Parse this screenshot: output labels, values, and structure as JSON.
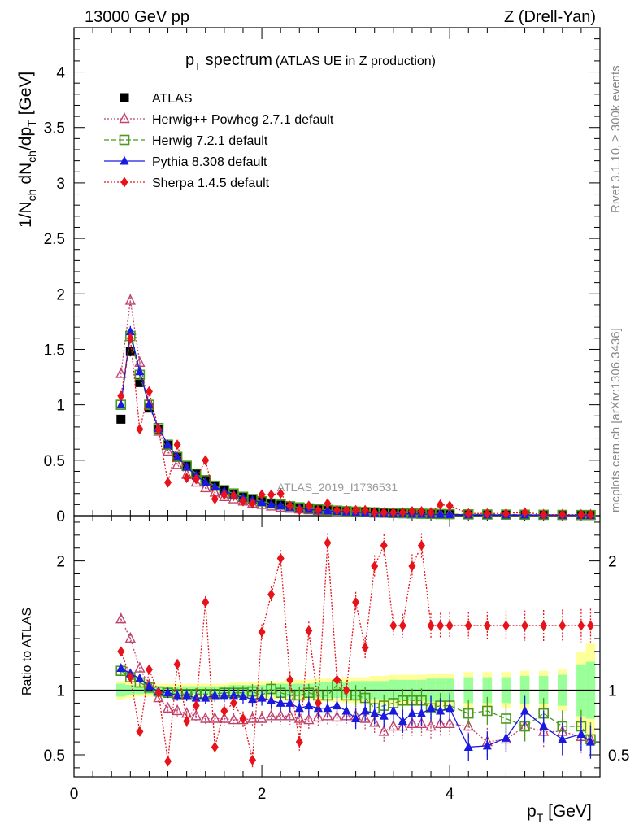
{
  "header": {
    "left": "13000 GeV pp",
    "right": "Z (Drell-Yan)"
  },
  "side_labels": {
    "top": "Rivet 3.1.10, ≥ 300k events",
    "bottom": "mcplots.cern.ch [arXiv:1306.3436]"
  },
  "title": {
    "main": "p",
    "main_sub": "T",
    "main_rest": " spectrum",
    "detail": "(ATLAS UE in Z production)"
  },
  "watermark": "ATLAS_2019_I1736531",
  "axes": {
    "ylabel_top": "1/N",
    "ylabel_ch1": "ch",
    "ylabel_mid": " dN",
    "ylabel_ch2": "ch",
    "ylabel_rest": "/dp",
    "ylabel_T": "T",
    "ylabel_unit": " [GeV]",
    "ylabel_ratio": "Ratio to ATLAS",
    "xlabel_p": "p",
    "xlabel_T": "T",
    "xlabel_unit": " [GeV]"
  },
  "chart_data": [
    {
      "type": "line",
      "panel": "main",
      "title": "pT spectrum (ATLAS UE in Z production)",
      "xlabel": "pT [GeV]",
      "ylabel": "1/Nch dNch/dpT [GeV]",
      "xlim": [
        0,
        5.6
      ],
      "ylim": [
        0,
        4.4
      ],
      "xticks": [
        "0",
        "2",
        "4"
      ],
      "yticks": [
        "0",
        "0.5",
        "1",
        "1.5",
        "2",
        "2.5",
        "3",
        "3.5",
        "4"
      ],
      "legend_position": "top-left",
      "x": [
        0.5,
        0.6,
        0.7,
        0.8,
        0.9,
        1.0,
        1.1,
        1.2,
        1.3,
        1.4,
        1.5,
        1.6,
        1.7,
        1.8,
        1.9,
        2.0,
        2.1,
        2.2,
        2.3,
        2.4,
        2.5,
        2.6,
        2.7,
        2.8,
        2.9,
        3.0,
        3.1,
        3.2,
        3.3,
        3.4,
        3.5,
        3.6,
        3.7,
        3.8,
        3.9,
        4.0,
        4.2,
        4.4,
        4.6,
        4.8,
        5.0,
        5.2,
        5.4,
        5.5
      ],
      "series": [
        {
          "name": "ATLAS",
          "color": "#000000",
          "marker": "square",
          "values": [
            0.87,
            1.48,
            1.2,
            0.97,
            0.78,
            0.64,
            0.53,
            0.45,
            0.38,
            0.32,
            0.27,
            0.23,
            0.2,
            0.17,
            0.15,
            0.13,
            0.11,
            0.1,
            0.085,
            0.075,
            0.066,
            0.058,
            0.052,
            0.046,
            0.041,
            0.037,
            0.033,
            0.03,
            0.027,
            0.024,
            0.022,
            0.02,
            0.018,
            0.017,
            0.015,
            0.014,
            0.012,
            0.011,
            0.01,
            0.009,
            0.008,
            0.007,
            0.006,
            0.006
          ]
        },
        {
          "name": "Herwig++ Powheg 2.7.1 default",
          "color": "#c0426f",
          "marker": "open-triangle",
          "line": "dotted",
          "values": [
            1.28,
            1.94,
            1.38,
            1.0,
            0.76,
            0.58,
            0.46,
            0.37,
            0.3,
            0.25,
            0.21,
            0.17,
            0.15,
            0.13,
            0.11,
            0.1,
            0.085,
            0.075,
            0.065,
            0.058,
            0.051,
            0.045,
            0.04,
            0.035,
            0.031,
            0.028,
            0.025,
            0.022,
            0.02,
            0.018,
            0.016,
            0.015,
            0.013,
            0.012,
            0.011,
            0.01,
            0.009,
            0.008,
            0.007,
            0.006,
            0.005,
            0.005,
            0.004,
            0.004
          ]
        },
        {
          "name": "Herwig 7.2.1 default",
          "color": "#4a9a1f",
          "marker": "open-square",
          "line": "dashed",
          "values": [
            1.0,
            1.62,
            1.27,
            1.0,
            0.79,
            0.64,
            0.53,
            0.45,
            0.38,
            0.32,
            0.27,
            0.23,
            0.2,
            0.17,
            0.15,
            0.13,
            0.11,
            0.1,
            0.085,
            0.075,
            0.066,
            0.058,
            0.052,
            0.046,
            0.041,
            0.037,
            0.033,
            0.03,
            0.027,
            0.024,
            0.022,
            0.02,
            0.018,
            0.017,
            0.015,
            0.014,
            0.012,
            0.011,
            0.01,
            0.009,
            0.008,
            0.007,
            0.006,
            0.006
          ]
        },
        {
          "name": "Pythia 8.308 default",
          "color": "#1a1adf",
          "marker": "triangle",
          "line": "solid",
          "values": [
            1.0,
            1.66,
            1.3,
            1.0,
            0.79,
            0.64,
            0.53,
            0.44,
            0.36,
            0.3,
            0.26,
            0.22,
            0.19,
            0.16,
            0.14,
            0.12,
            0.1,
            0.09,
            0.075,
            0.066,
            0.058,
            0.05,
            0.045,
            0.04,
            0.035,
            0.031,
            0.028,
            0.025,
            0.022,
            0.02,
            0.018,
            0.016,
            0.015,
            0.013,
            0.012,
            0.011,
            0.008,
            0.007,
            0.007,
            0.007,
            0.006,
            0.005,
            0.004,
            0.004
          ]
        },
        {
          "name": "Sherpa 1.4.5 default",
          "color": "#e8121a",
          "marker": "diamond",
          "line": "dotted",
          "values": [
            1.08,
            1.6,
            0.78,
            1.12,
            0.78,
            0.3,
            0.64,
            0.34,
            0.33,
            0.5,
            0.15,
            0.19,
            0.18,
            0.13,
            0.11,
            0.19,
            0.19,
            0.2,
            0.09,
            0.05,
            0.09,
            0.05,
            0.11,
            0.05,
            0.05,
            0.05,
            0.05,
            0.03,
            0.03,
            0.03,
            0.03,
            0.04,
            0.04,
            0.03,
            0.1,
            0.09,
            0.02,
            0.02,
            0.02,
            0.03,
            0.01,
            0.01,
            0.01,
            0.01
          ]
        }
      ]
    },
    {
      "type": "line",
      "panel": "ratio",
      "ylabel": "Ratio to ATLAS",
      "xlabel": "pT [GeV]",
      "xlim": [
        0,
        5.6
      ],
      "ylim": [
        0.33,
        2.35
      ],
      "yticks": [
        "0.5",
        "1",
        "2"
      ],
      "reference_line": 1,
      "x": [
        0.5,
        0.6,
        0.7,
        0.8,
        0.9,
        1.0,
        1.1,
        1.2,
        1.3,
        1.4,
        1.5,
        1.6,
        1.7,
        1.8,
        1.9,
        2.0,
        2.1,
        2.2,
        2.3,
        2.4,
        2.5,
        2.6,
        2.7,
        2.8,
        2.9,
        3.0,
        3.1,
        3.2,
        3.3,
        3.4,
        3.5,
        3.6,
        3.7,
        3.8,
        3.9,
        4.0,
        4.2,
        4.4,
        4.6,
        4.8,
        5.0,
        5.2,
        5.4,
        5.5
      ],
      "band_inner": [
        0.05,
        0.04,
        0.03,
        0.03,
        0.03,
        0.03,
        0.03,
        0.03,
        0.03,
        0.03,
        0.03,
        0.03,
        0.04,
        0.04,
        0.04,
        0.04,
        0.04,
        0.05,
        0.05,
        0.05,
        0.05,
        0.06,
        0.06,
        0.06,
        0.06,
        0.07,
        0.07,
        0.07,
        0.07,
        0.08,
        0.08,
        0.08,
        0.08,
        0.09,
        0.09,
        0.09,
        0.1,
        0.1,
        0.1,
        0.11,
        0.11,
        0.12,
        0.2,
        0.22
      ],
      "band_outer": [
        0.07,
        0.06,
        0.05,
        0.05,
        0.05,
        0.05,
        0.05,
        0.05,
        0.05,
        0.05,
        0.05,
        0.05,
        0.06,
        0.06,
        0.06,
        0.07,
        0.07,
        0.07,
        0.08,
        0.08,
        0.08,
        0.09,
        0.09,
        0.09,
        0.1,
        0.1,
        0.1,
        0.11,
        0.11,
        0.12,
        0.12,
        0.12,
        0.12,
        0.13,
        0.13,
        0.13,
        0.14,
        0.14,
        0.14,
        0.15,
        0.15,
        0.16,
        0.3,
        0.36
      ],
      "series": [
        {
          "name": "Herwig++ Powheg 2.7.1 default",
          "color": "#c0426f",
          "marker": "open-triangle",
          "line": "dotted",
          "values": [
            1.55,
            1.4,
            1.17,
            1.04,
            0.94,
            0.86,
            0.84,
            0.82,
            0.8,
            0.78,
            0.78,
            0.78,
            0.77,
            0.77,
            0.78,
            0.78,
            0.8,
            0.8,
            0.8,
            0.78,
            0.77,
            0.79,
            0.8,
            0.79,
            0.8,
            0.8,
            0.78,
            0.75,
            0.68,
            0.72,
            0.72,
            0.74,
            0.74,
            0.72,
            0.74,
            0.74,
            0.72,
            0.6,
            0.62,
            0.72,
            0.68,
            0.68,
            0.64,
            0.62
          ]
        },
        {
          "name": "Herwig 7.2.1 default",
          "color": "#4a9a1f",
          "marker": "open-square",
          "line": "dashed",
          "values": [
            1.15,
            1.1,
            1.06,
            1.02,
            0.99,
            0.98,
            0.97,
            0.97,
            0.97,
            0.97,
            0.97,
            0.98,
            0.98,
            0.98,
            0.99,
            0.96,
            1.01,
            0.98,
            0.96,
            0.96,
            0.98,
            0.96,
            0.96,
            1.04,
            0.96,
            0.96,
            0.94,
            0.86,
            0.88,
            0.9,
            0.92,
            0.92,
            0.92,
            0.86,
            0.88,
            0.88,
            0.82,
            0.84,
            0.78,
            0.72,
            0.82,
            0.72,
            0.72,
            0.62
          ]
        },
        {
          "name": "Pythia 8.308 default",
          "color": "#1a1adf",
          "marker": "triangle",
          "line": "solid",
          "values": [
            1.17,
            1.13,
            1.09,
            1.03,
            0.99,
            0.98,
            0.96,
            0.96,
            0.94,
            0.94,
            0.96,
            0.96,
            0.96,
            0.95,
            0.93,
            0.94,
            0.92,
            0.9,
            0.9,
            0.86,
            0.88,
            0.86,
            0.86,
            0.88,
            0.84,
            0.78,
            0.84,
            0.82,
            0.8,
            0.84,
            0.76,
            0.82,
            0.82,
            0.86,
            0.84,
            0.86,
            0.56,
            0.57,
            0.63,
            0.84,
            0.72,
            0.62,
            0.66,
            0.6
          ]
        },
        {
          "name": "Sherpa 1.4.5 default",
          "color": "#e8121a",
          "marker": "diamond",
          "line": "dotted",
          "values": [
            1.3,
            1.1,
            0.68,
            1.16,
            0.98,
            0.45,
            1.2,
            0.76,
            0.88,
            1.68,
            0.56,
            0.84,
            0.9,
            0.78,
            0.46,
            1.45,
            1.74,
            2.02,
            1.08,
            0.6,
            1.46,
            0.9,
            2.14,
            1.08,
            1.0,
            1.68,
            1.33,
            1.96,
            2.12,
            1.5,
            1.5,
            1.96,
            2.12,
            1.5,
            1.5,
            1.5,
            1.5,
            1.5,
            1.5,
            1.5,
            1.5,
            1.5,
            1.5,
            1.5
          ]
        }
      ]
    }
  ]
}
